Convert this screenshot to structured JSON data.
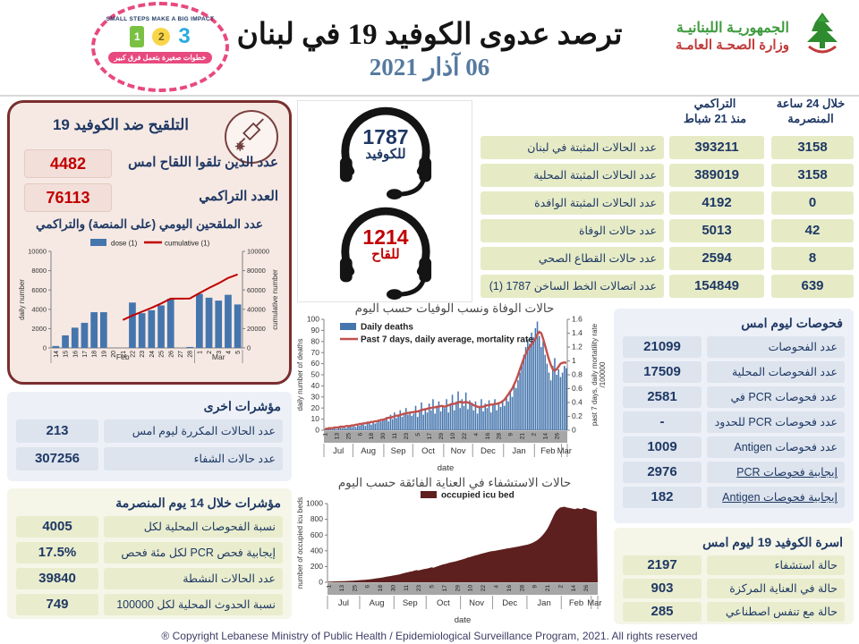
{
  "header": {
    "ministry_line1": "الجمهوريـة اللبنانيـة",
    "ministry_line2": "وزارة الصحـة العامـة",
    "title": "ترصد عدوى الكوفيد 19 في لبنان",
    "date": "06 آذار 2021",
    "campaign_top": "SMALL STEPS MAKE A BIG IMPACT",
    "campaign_bottom": "خطوات صغيرة بتعمل فرق كبير",
    "campaign_steps": [
      "1",
      "2",
      "3"
    ]
  },
  "vaccination": {
    "title": "التلقيح ضد الكوفيد 19",
    "rows": [
      {
        "label": "عدد الذين تلقوا اللقاح امس",
        "value": "4482"
      },
      {
        "label": "العدد التراكمي",
        "value": "76113"
      }
    ]
  },
  "hotlines": [
    {
      "number": "1787",
      "label": "للكوفيد"
    },
    {
      "number": "1214",
      "label": "للقاح"
    }
  ],
  "stats_table": {
    "header_24h_line1": "خلال 24 ساعة",
    "header_24h_line2": "المنصرمة",
    "header_cum_line1": "التراكمي",
    "header_cum_line2": "منذ 21 شباط",
    "rows": [
      {
        "label": "عدد الحالات المثبتة في لبنان",
        "cumulative": "393211",
        "last24h": "3158"
      },
      {
        "label": "عدد الحالات المثبتة المحلية",
        "cumulative": "389019",
        "last24h": "3158"
      },
      {
        "label": "عدد الحالات المثبتة الوافدة",
        "cumulative": "4192",
        "last24h": "0"
      },
      {
        "label": "عدد حالات الوفاة",
        "cumulative": "5013",
        "last24h": "42"
      },
      {
        "label": "عدد حالات القطاع الصحي",
        "cumulative": "2594",
        "last24h": "8"
      },
      {
        "label": "عدد اتصالات الخط الساخن 1787 (1)",
        "cumulative": "154849",
        "last24h": "639"
      }
    ]
  },
  "other_indicators": {
    "title": "مؤشرات اخرى",
    "rows": [
      {
        "label": "عدد الحالات المكررة ليوم امس",
        "value": "213"
      },
      {
        "label": "عدد حالات الشفاء",
        "value": "307256"
      }
    ]
  },
  "indicators_14d": {
    "title": "مؤشرات خلال 14 يوم المنصرمة",
    "rows": [
      {
        "label": "نسبة الفحوصات المحلية لكل 100000",
        "value": "4005"
      },
      {
        "label": "إيجابية فحص PCR لكل مئة فحص",
        "value": "17.5%"
      },
      {
        "label": "عدد الحالات النشطة",
        "value": "39840"
      },
      {
        "label": "نسبة الحدوث المحلية لكل 100000",
        "value": "749"
      }
    ]
  },
  "tests_yesterday": {
    "title": "فحوصات ليوم امس",
    "rows": [
      {
        "label": "عدد الفحوصات",
        "value": "21099"
      },
      {
        "label": "عدد الفحوصات المحلية",
        "value": "17509"
      },
      {
        "label": "عدد فحوصات PCR في المطار",
        "value": "2581"
      },
      {
        "label": "عدد فحوصات PCR للحدود",
        "value": "-"
      },
      {
        "label": "عدد فحوصات Antigen",
        "value": "1009"
      },
      {
        "label": "إيجابية فحوصات PCR",
        "value": "2976"
      },
      {
        "label": "إيجابية فحوصات Antigen",
        "value": "182"
      }
    ]
  },
  "beds_yesterday": {
    "title": "اسرة الكوفيد 19 ليوم امس",
    "rows": [
      {
        "label": "حالة استشفاء",
        "value": "2197"
      },
      {
        "label": "حالة في العناية المركزة",
        "value": "903"
      },
      {
        "label": "حالة مع تنفس اصطناعي",
        "value": "285"
      }
    ]
  },
  "footer": "® Copyright Lebanese Ministry of Public Health / Epidemiological Surveillance Program, 2021.  All rights reserved",
  "colors": {
    "navy": "#1f3864",
    "red": "#c00000",
    "bar_blue": "#4575ad",
    "line_red": "#c0504d",
    "maroon": "#5e1f1f",
    "olive_cell": "#e6ebc6",
    "blue_cell": "#dde4ee",
    "pink_panel": "#f6e9e3"
  },
  "chart_data": [
    {
      "id": "vaccine",
      "type": "bar+line",
      "title": "عدد الملقحين اليومي (على المنصة) والتراكمي",
      "categories": [
        "14",
        "15",
        "16",
        "17",
        "18",
        "19",
        "20",
        "21",
        "22",
        "23",
        "24",
        "25",
        "26",
        "27",
        "28",
        "1",
        "2",
        "3",
        "4",
        "5"
      ],
      "month_groups": [
        {
          "label": "Feb",
          "span": 15
        },
        {
          "label": "Mar",
          "span": 5
        }
      ],
      "series": [
        {
          "name": "dose (1)",
          "type": "bar",
          "axis": "left",
          "color": "#4575ad",
          "values": [
            200,
            1300,
            2100,
            2600,
            3700,
            3700,
            0,
            0,
            4700,
            3600,
            3900,
            4400,
            5100,
            0,
            100,
            5600,
            5200,
            4900,
            5500,
            4500
          ]
        },
        {
          "name": "cumulative (1)",
          "type": "line",
          "axis": "right",
          "color": "#c00000",
          "values": [
            null,
            null,
            null,
            null,
            null,
            null,
            null,
            29000,
            33500,
            37500,
            41500,
            46000,
            51000,
            51000,
            51200,
            56800,
            62000,
            66900,
            72400,
            76113
          ]
        }
      ],
      "left_axis": {
        "label": "daily number",
        "min": 0,
        "max": 10000,
        "step": 2000
      },
      "right_axis": {
        "labels": [
          "cumulative number"
        ],
        "min": 0,
        "max": 100000,
        "step": 20000
      }
    },
    {
      "id": "deaths",
      "type": "bar+line",
      "title": "حالات الوفاة ونسب الوفيات حسب اليوم",
      "xlabel": "date",
      "tick_labels": [
        "1",
        "13",
        "25",
        "6",
        "18",
        "30",
        "11",
        "23",
        "5",
        "17",
        "29",
        "10",
        "22",
        "4",
        "16",
        "28",
        "9",
        "21",
        "2",
        "14",
        "26"
      ],
      "tick_every": 6,
      "month_groups": [
        {
          "label": "Jul",
          "span": 15
        },
        {
          "label": "Aug",
          "span": 16
        },
        {
          "label": "Sep",
          "span": 15
        },
        {
          "label": "Oct",
          "span": 16
        },
        {
          "label": "Nov",
          "span": 15
        },
        {
          "label": "Dec",
          "span": 16
        },
        {
          "label": "Jan",
          "span": 16
        },
        {
          "label": "Feb",
          "span": 14
        },
        {
          "label": "Mar",
          "span": 3
        }
      ],
      "series": [
        {
          "name": "Daily deaths",
          "type": "bar",
          "axis": "left",
          "color": "#4575ad",
          "values": [
            1,
            0,
            2,
            1,
            1,
            2,
            1,
            3,
            2,
            2,
            3,
            2,
            4,
            3,
            3,
            4,
            3,
            5,
            4,
            6,
            5,
            4,
            6,
            7,
            5,
            8,
            6,
            7,
            9,
            8,
            10,
            9,
            12,
            8,
            14,
            10,
            16,
            11,
            13,
            18,
            12,
            15,
            20,
            14,
            17,
            13,
            15,
            22,
            12,
            18,
            25,
            14,
            20,
            16,
            24,
            18,
            28,
            15,
            21,
            26,
            17,
            22,
            20,
            28,
            16,
            24,
            32,
            18,
            26,
            35,
            20,
            28,
            22,
            34,
            19,
            27,
            24,
            18,
            26,
            15,
            22,
            28,
            17,
            24,
            20,
            27,
            16,
            23,
            28,
            18,
            25,
            21,
            26,
            22,
            30,
            26,
            35,
            30,
            40,
            38,
            45,
            52,
            60,
            68,
            75,
            82,
            78,
            88,
            84,
            92,
            98,
            85,
            75,
            80,
            68,
            60,
            52,
            45,
            58,
            65,
            50,
            55,
            48,
            52,
            58,
            56
          ]
        },
        {
          "name": "Past 7 days, daily average, mortality rate",
          "type": "line",
          "axis": "right",
          "color": "#c0504d",
          "values": [
            0.02,
            0.02,
            0.03,
            0.03,
            0.03,
            0.04,
            0.04,
            0.04,
            0.05,
            0.05,
            0.05,
            0.06,
            0.06,
            0.06,
            0.07,
            0.07,
            0.08,
            0.08,
            0.09,
            0.09,
            0.1,
            0.1,
            0.11,
            0.11,
            0.12,
            0.12,
            0.13,
            0.13,
            0.14,
            0.15,
            0.15,
            0.16,
            0.17,
            0.18,
            0.18,
            0.19,
            0.2,
            0.21,
            0.21,
            0.22,
            0.23,
            0.24,
            0.24,
            0.25,
            0.25,
            0.26,
            0.26,
            0.27,
            0.27,
            0.28,
            0.29,
            0.3,
            0.3,
            0.31,
            0.32,
            0.32,
            0.33,
            0.33,
            0.34,
            0.34,
            0.35,
            0.35,
            0.34,
            0.35,
            0.36,
            0.37,
            0.38,
            0.38,
            0.39,
            0.4,
            0.41,
            0.4,
            0.4,
            0.41,
            0.4,
            0.39,
            0.38,
            0.36,
            0.35,
            0.34,
            0.33,
            0.34,
            0.34,
            0.35,
            0.36,
            0.36,
            0.37,
            0.37,
            0.38,
            0.38,
            0.39,
            0.4,
            0.42,
            0.44,
            0.48,
            0.52,
            0.56,
            0.6,
            0.66,
            0.72,
            0.8,
            0.88,
            0.96,
            1.04,
            1.1,
            1.16,
            1.2,
            1.24,
            1.28,
            1.32,
            1.38,
            1.42,
            1.4,
            1.32,
            1.22,
            1.12,
            1.02,
            0.94,
            0.88,
            0.86,
            0.88,
            0.92,
            0.96,
            0.97,
            0.98,
            0.97
          ]
        }
      ],
      "left_axis": {
        "label": "daily number of deaths",
        "min": 0,
        "max": 100,
        "step": 10
      },
      "right_axis": {
        "labels": [
          "past 7 days, daily mortatility rate",
          "/100000"
        ],
        "min": 0,
        "max": 1.6,
        "step": 0.2
      }
    },
    {
      "id": "icu",
      "type": "area",
      "title": "حالات الاستشفاء في العناية الفائقة حسب اليوم",
      "xlabel": "date",
      "tick_labels": [
        "1",
        "13",
        "25",
        "6",
        "18",
        "30",
        "11",
        "23",
        "5",
        "17",
        "29",
        "10",
        "22",
        "4",
        "16",
        "28",
        "9",
        "21",
        "2",
        "14",
        "26"
      ],
      "tick_every": 6,
      "month_groups": [
        {
          "label": "Jul",
          "span": 15
        },
        {
          "label": "Aug",
          "span": 16
        },
        {
          "label": "Sep",
          "span": 15
        },
        {
          "label": "Oct",
          "span": 16
        },
        {
          "label": "Nov",
          "span": 15
        },
        {
          "label": "Dec",
          "span": 16
        },
        {
          "label": "Jan",
          "span": 16
        },
        {
          "label": "Feb",
          "span": 14
        },
        {
          "label": "Mar",
          "span": 3
        }
      ],
      "series": [
        {
          "name": "occupied icu bed",
          "type": "area",
          "axis": "left",
          "color": "#5e1f1f",
          "values": [
            8,
            9,
            10,
            11,
            12,
            13,
            14,
            15,
            16,
            17,
            18,
            20,
            22,
            24,
            26,
            28,
            30,
            32,
            34,
            36,
            40,
            44,
            48,
            52,
            56,
            60,
            65,
            70,
            75,
            80,
            85,
            90,
            95,
            100,
            108,
            115,
            122,
            128,
            135,
            140,
            148,
            155,
            150,
            158,
            165,
            170,
            175,
            182,
            190,
            185,
            195,
            205,
            215,
            225,
            230,
            238,
            245,
            252,
            258,
            265,
            272,
            280,
            288,
            295,
            305,
            315,
            322,
            330,
            338,
            345,
            352,
            360,
            368,
            375,
            382,
            390,
            395,
            398,
            402,
            408,
            412,
            418,
            422,
            428,
            432,
            438,
            442,
            448,
            452,
            458,
            462,
            468,
            475,
            480,
            490,
            500,
            515,
            530,
            550,
            575,
            605,
            640,
            680,
            730,
            790,
            850,
            900,
            930,
            950,
            955,
            960,
            950,
            945,
            940,
            935,
            930,
            940,
            935,
            930,
            945,
            940,
            930,
            920,
            915,
            905,
            900
          ]
        }
      ],
      "left_axis": {
        "label": "number of occupied icu beds",
        "min": 0,
        "max": 1000,
        "step": 200
      }
    }
  ]
}
